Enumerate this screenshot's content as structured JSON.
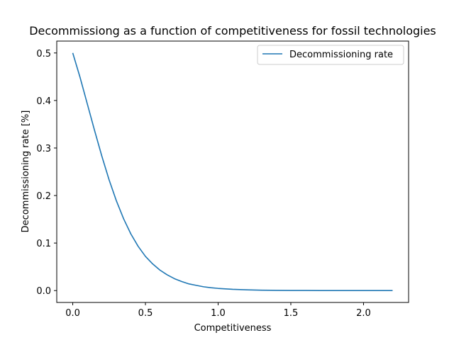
{
  "chart_data": {
    "type": "line",
    "title": "Decommissiong as a function of competitiveness for fossil technologies",
    "xlabel": "Competitiveness",
    "ylabel": "Decommissioning rate [%]",
    "xlim": [
      -0.11,
      2.31
    ],
    "ylim": [
      -0.025,
      0.525
    ],
    "xticks": [
      0.0,
      0.5,
      1.0,
      1.5,
      2.0
    ],
    "xtick_labels": [
      "0.0",
      "0.5",
      "1.0",
      "1.5",
      "2.0"
    ],
    "yticks": [
      0.0,
      0.1,
      0.2,
      0.3,
      0.4,
      0.5
    ],
    "ytick_labels": [
      "0.0",
      "0.1",
      "0.2",
      "0.3",
      "0.4",
      "0.5"
    ],
    "grid": false,
    "legend_position": "top-right",
    "series": [
      {
        "name": "Decommissioning rate",
        "color": "#1f77b4",
        "x": [
          0.0,
          0.05,
          0.1,
          0.15,
          0.2,
          0.25,
          0.3,
          0.35,
          0.4,
          0.45,
          0.5,
          0.55,
          0.6,
          0.65,
          0.7,
          0.75,
          0.8,
          0.85,
          0.9,
          0.95,
          1.0,
          1.1,
          1.2,
          1.3,
          1.4,
          1.5,
          1.6,
          1.7,
          1.8,
          1.9,
          2.0,
          2.1,
          2.2
        ],
        "y": [
          0.5,
          0.449,
          0.393,
          0.337,
          0.283,
          0.233,
          0.189,
          0.151,
          0.119,
          0.093,
          0.072,
          0.056,
          0.043,
          0.033,
          0.025,
          0.019,
          0.014,
          0.011,
          0.008,
          0.006,
          0.0046,
          0.0026,
          0.0015,
          0.0008,
          0.0005,
          0.0003,
          0.0002,
          0.0001,
          0.0001,
          0.0,
          0.0,
          0.0,
          0.0
        ]
      }
    ]
  }
}
